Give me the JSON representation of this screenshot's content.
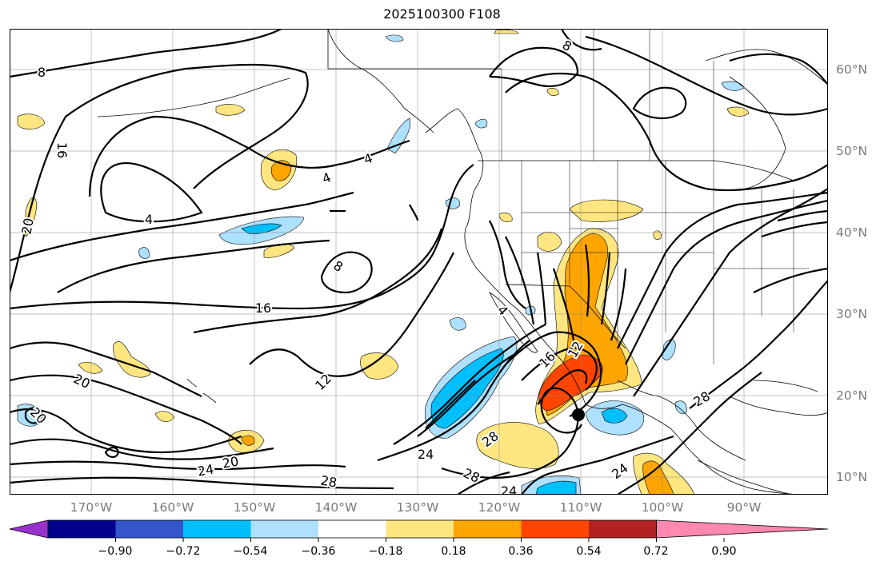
{
  "title": "2025100300 F108",
  "map": {
    "projection": "cylindrical",
    "lon_range": [
      -180,
      -80
    ],
    "lat_range": [
      8,
      65
    ],
    "grid": true,
    "lon_labels": [
      "170°W",
      "160°W",
      "150°W",
      "140°W",
      "130°W",
      "120°W",
      "110°W",
      "100°W",
      "90°W"
    ],
    "lat_labels": [
      "60°N",
      "50°N",
      "40°N",
      "30°N",
      "20°N",
      "10°N"
    ],
    "contour_labels": [
      "8",
      "16",
      "20",
      "4",
      "4",
      "4",
      "8",
      "16",
      "12",
      "20",
      "20",
      "24",
      "20",
      "28",
      "24",
      "28",
      "24",
      "28",
      "16",
      "12",
      "28",
      "24",
      "8",
      "4"
    ],
    "marker": "storm-center-dot"
  },
  "colorbar": {
    "ticks": [
      "−0.90",
      "−0.72",
      "−0.54",
      "−0.36",
      "−0.18",
      "0.18",
      "0.36",
      "0.54",
      "0.72",
      "0.90"
    ],
    "colors": [
      "#9932cc",
      "#00008b",
      "#3455cc",
      "#00bfff",
      "#aee0ff",
      "#ffffff",
      "#ffe680",
      "#ffa500",
      "#ff4500",
      "#b22222",
      "#ff88b0"
    ]
  }
}
